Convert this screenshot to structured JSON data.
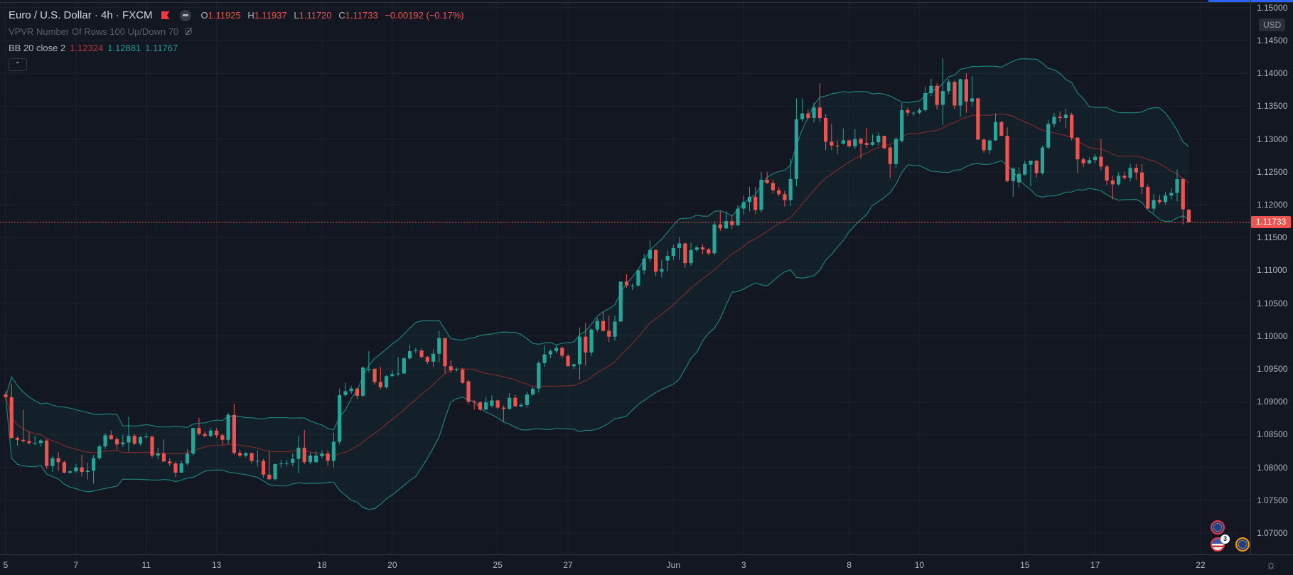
{
  "header": {
    "symbol": "Euro / U.S. Dollar · 4h · FXCM",
    "ohlc": [
      {
        "key": "O",
        "value": "1.11925"
      },
      {
        "key": "H",
        "value": "1.11937"
      },
      {
        "key": "L",
        "value": "1.11720"
      },
      {
        "key": "C",
        "value": "1.11733"
      }
    ],
    "change": "−0.00192 (−0.17%)",
    "vpvr": "VPVR Number Of Rows 100 Up/Down 70",
    "bb_label": "BB 20 close 2",
    "bb_basis": "1.12324",
    "bb_upper": "1.12881",
    "bb_lower": "1.11767",
    "collapse_icon": "chevron-up-icon"
  },
  "price_axis": {
    "currency": "USD",
    "last_price": "1.11733",
    "ticks": [
      "1.15000",
      "1.14500",
      "1.14000",
      "1.13500",
      "1.13000",
      "1.12500",
      "1.12000",
      "1.11500",
      "1.11000",
      "1.10500",
      "1.10000",
      "1.09500",
      "1.09000",
      "1.08500",
      "1.08000",
      "1.07500",
      "1.07000"
    ]
  },
  "time_axis": {
    "ticks": [
      {
        "label": "5",
        "index": 0
      },
      {
        "label": "7",
        "index": 12
      },
      {
        "label": "11",
        "index": 24
      },
      {
        "label": "13",
        "index": 36
      },
      {
        "label": "18",
        "index": 54
      },
      {
        "label": "20",
        "index": 66
      },
      {
        "label": "25",
        "index": 84
      },
      {
        "label": "27",
        "index": 96
      },
      {
        "label": "Jun",
        "index": 114
      },
      {
        "label": "3",
        "index": 126
      },
      {
        "label": "8",
        "index": 144
      },
      {
        "label": "10",
        "index": 156
      },
      {
        "label": "15",
        "index": 174
      },
      {
        "label": "17",
        "index": 186
      },
      {
        "label": "22",
        "index": 204
      }
    ]
  },
  "events": [
    {
      "icon": "eu-flag-icon",
      "kind": "eu"
    },
    {
      "icon": "us-flag-icon",
      "kind": "us",
      "count": "3"
    },
    {
      "icon": "eu-flag-icon",
      "kind": "eu-orange"
    }
  ],
  "colors": {
    "background": "#131722",
    "up": "#26a69a",
    "down": "#ef5350",
    "bb_band": "#1f7f79",
    "bb_basis": "#7b2b2d",
    "grid": "#1e222d",
    "last_price": "#ef5350"
  },
  "chart_data": {
    "type": "candlestick",
    "interval": "4h",
    "ylim": [
      1.0665,
      1.1505
    ],
    "grid": true,
    "indicator": {
      "name": "BB",
      "length": 20,
      "source": "close",
      "mult": 2
    },
    "ohlc": [
      [
        1.0911,
        1.0916,
        1.0902,
        1.0907
      ],
      [
        1.0907,
        1.0927,
        1.0843,
        1.0845
      ],
      [
        1.0845,
        1.0847,
        1.0833,
        1.0842
      ],
      [
        1.0842,
        1.0888,
        1.0838,
        1.084
      ],
      [
        1.084,
        1.0855,
        1.0835,
        1.0837
      ],
      [
        1.0836,
        1.0848,
        1.0834,
        1.0837
      ],
      [
        1.0837,
        1.0843,
        1.0832,
        1.0841
      ],
      [
        1.0841,
        1.0843,
        1.0798,
        1.0802
      ],
      [
        1.0802,
        1.0818,
        1.0793,
        1.0814
      ],
      [
        1.0814,
        1.0823,
        1.0795,
        1.0808
      ],
      [
        1.0808,
        1.081,
        1.0791,
        1.0792
      ],
      [
        1.0792,
        1.0796,
        1.079,
        1.0794
      ],
      [
        1.0794,
        1.0805,
        1.0792,
        1.08
      ],
      [
        1.08,
        1.0819,
        1.0786,
        1.0793
      ],
      [
        1.0793,
        1.0807,
        1.0781,
        1.0795
      ],
      [
        1.0795,
        1.0819,
        1.0775,
        1.0814
      ],
      [
        1.0814,
        1.0835,
        1.0811,
        1.0832
      ],
      [
        1.0832,
        1.0852,
        1.0828,
        1.0849
      ],
      [
        1.0849,
        1.0856,
        1.0842,
        1.0843
      ],
      [
        1.0843,
        1.0846,
        1.0827,
        1.0835
      ],
      [
        1.0835,
        1.085,
        1.0831,
        1.0838
      ],
      [
        1.0838,
        1.0877,
        1.0824,
        1.0848
      ],
      [
        1.0848,
        1.0851,
        1.0834,
        1.0836
      ],
      [
        1.0836,
        1.0848,
        1.0833,
        1.0846
      ],
      [
        1.0846,
        1.0852,
        1.0844,
        1.0847
      ],
      [
        1.0847,
        1.0848,
        1.0815,
        1.0818
      ],
      [
        1.0818,
        1.083,
        1.0812,
        1.0821
      ],
      [
        1.0821,
        1.0843,
        1.0808,
        1.0809
      ],
      [
        1.0809,
        1.0814,
        1.0802,
        1.0806
      ],
      [
        1.0806,
        1.0809,
        1.0785,
        1.0792
      ],
      [
        1.0792,
        1.081,
        1.0792,
        1.0806
      ],
      [
        1.0806,
        1.0828,
        1.0803,
        1.0821
      ],
      [
        1.0821,
        1.086,
        1.0818,
        1.086
      ],
      [
        1.086,
        1.0876,
        1.0849,
        1.0851
      ],
      [
        1.0851,
        1.0855,
        1.0846,
        1.0848
      ],
      [
        1.0848,
        1.086,
        1.0846,
        1.0856
      ],
      [
        1.0856,
        1.086,
        1.0845,
        1.0849
      ],
      [
        1.0849,
        1.0852,
        1.0834,
        1.0842
      ],
      [
        1.0842,
        1.0883,
        1.0836,
        1.088
      ],
      [
        1.088,
        1.0897,
        1.0819,
        1.0822
      ],
      [
        1.0822,
        1.0827,
        1.0815,
        1.0818
      ],
      [
        1.0818,
        1.0823,
        1.0815,
        1.0822
      ],
      [
        1.0822,
        1.0822,
        1.0806,
        1.081
      ],
      [
        1.081,
        1.0826,
        1.0801,
        1.081
      ],
      [
        1.081,
        1.0813,
        1.0784,
        1.0789
      ],
      [
        1.0789,
        1.0825,
        1.0781,
        1.0782
      ],
      [
        1.0782,
        1.0806,
        1.078,
        1.0805
      ],
      [
        1.0805,
        1.0811,
        1.08,
        1.0806
      ],
      [
        1.0806,
        1.0811,
        1.0802,
        1.0807
      ],
      [
        1.0807,
        1.0821,
        1.0802,
        1.0813
      ],
      [
        1.0813,
        1.0848,
        1.0791,
        1.083
      ],
      [
        1.083,
        1.0857,
        1.0805,
        1.0808
      ],
      [
        1.0808,
        1.0822,
        1.0805,
        1.0818
      ],
      [
        1.0808,
        1.0825,
        1.0807,
        1.0818
      ],
      [
        1.0817,
        1.0826,
        1.0814,
        1.0821
      ],
      [
        1.0821,
        1.0826,
        1.0802,
        1.081
      ],
      [
        1.081,
        1.0853,
        1.08,
        1.0839
      ],
      [
        1.0839,
        1.092,
        1.0835,
        1.091
      ],
      [
        1.091,
        1.0929,
        1.0907,
        1.0916
      ],
      [
        1.0916,
        1.0924,
        1.0912,
        1.092
      ],
      [
        1.092,
        1.0921,
        1.0904,
        1.0909
      ],
      [
        1.0909,
        1.0954,
        1.0907,
        1.0952
      ],
      [
        1.095,
        1.0977,
        1.0945,
        1.095
      ],
      [
        1.095,
        1.0951,
        1.0926,
        1.093
      ],
      [
        1.093,
        1.0953,
        1.0919,
        1.0922
      ],
      [
        1.0922,
        1.0941,
        1.092,
        1.0939
      ],
      [
        1.0939,
        1.0948,
        1.0938,
        1.0942
      ],
      [
        1.0942,
        1.0968,
        1.0939,
        1.0943
      ],
      [
        1.0943,
        1.0968,
        1.0942,
        1.0966
      ],
      [
        1.0966,
        1.0987,
        1.0964,
        1.0977
      ],
      [
        1.0977,
        1.0982,
        1.0974,
        1.0978
      ],
      [
        1.0978,
        1.0981,
        1.0966,
        1.0968
      ],
      [
        1.0968,
        1.097,
        1.0957,
        1.0961
      ],
      [
        1.0961,
        1.098,
        1.0953,
        1.0973
      ],
      [
        1.0973,
        1.1008,
        1.096,
        1.0997
      ],
      [
        1.0997,
        1.0997,
        1.0943,
        1.0954
      ],
      [
        1.0954,
        1.0963,
        1.0944,
        1.0948
      ],
      [
        1.0949,
        1.0952,
        1.0946,
        1.0949
      ],
      [
        1.0949,
        1.0951,
        1.0927,
        1.0929
      ],
      [
        1.0931,
        1.0933,
        1.0896,
        1.09
      ],
      [
        1.09,
        1.0903,
        1.0888,
        1.0899
      ],
      [
        1.0899,
        1.0901,
        1.0886,
        1.0888
      ],
      [
        1.0888,
        1.0907,
        1.0887,
        1.0899
      ],
      [
        1.0894,
        1.091,
        1.0891,
        1.0902
      ],
      [
        1.0902,
        1.0903,
        1.0889,
        1.0891
      ],
      [
        1.0891,
        1.0894,
        1.087,
        1.0889
      ],
      [
        1.0889,
        1.0913,
        1.0888,
        1.0906
      ],
      [
        1.0906,
        1.0911,
        1.0892,
        1.0893
      ],
      [
        1.0893,
        1.0898,
        1.0892,
        1.0895
      ],
      [
        1.0895,
        1.0915,
        1.0891,
        1.0911
      ],
      [
        1.0911,
        1.0922,
        1.0909,
        1.092
      ],
      [
        1.092,
        1.0962,
        1.0914,
        1.0959
      ],
      [
        1.0959,
        1.0986,
        1.0953,
        1.0972
      ],
      [
        1.0972,
        1.098,
        1.0966,
        1.0977
      ],
      [
        1.0977,
        1.0986,
        1.0974,
        1.0982
      ],
      [
        1.0982,
        1.0984,
        1.0966,
        1.097
      ],
      [
        1.097,
        1.0972,
        1.0954,
        1.0954
      ],
      [
        1.0954,
        1.0958,
        1.095,
        1.0957
      ],
      [
        1.0957,
        1.1013,
        1.0934,
        1.0999
      ],
      [
        1.0999,
        1.102,
        1.0955,
        1.0975
      ],
      [
        1.0975,
        1.1012,
        1.097,
        1.101
      ],
      [
        1.101,
        1.1028,
        1.1006,
        1.1023
      ],
      [
        1.1023,
        1.1037,
        1.1007,
        1.1008
      ],
      [
        1.1008,
        1.1031,
        1.0991,
        1.0999
      ],
      [
        1.0999,
        1.1031,
        1.0993,
        1.1022
      ],
      [
        1.1022,
        1.1083,
        1.1022,
        1.1083
      ],
      [
        1.1083,
        1.1094,
        1.1073,
        1.1077
      ],
      [
        1.1077,
        1.108,
        1.107,
        1.1077
      ],
      [
        1.1077,
        1.1102,
        1.1075,
        1.11
      ],
      [
        1.11,
        1.1125,
        1.1094,
        1.1118
      ],
      [
        1.1118,
        1.1146,
        1.1113,
        1.1131
      ],
      [
        1.1131,
        1.1132,
        1.1091,
        1.1098
      ],
      [
        1.1098,
        1.1116,
        1.1089,
        1.1102
      ],
      [
        1.1115,
        1.113,
        1.1099,
        1.1122
      ],
      [
        1.1122,
        1.1139,
        1.1116,
        1.1134
      ],
      [
        1.1134,
        1.115,
        1.1116,
        1.1141
      ],
      [
        1.1141,
        1.1142,
        1.1104,
        1.1111
      ],
      [
        1.1111,
        1.1142,
        1.1107,
        1.1131
      ],
      [
        1.1131,
        1.1138,
        1.1128,
        1.1135
      ],
      [
        1.1135,
        1.114,
        1.1125,
        1.1132
      ],
      [
        1.1132,
        1.1134,
        1.1123,
        1.1126
      ],
      [
        1.1126,
        1.1175,
        1.1123,
        1.117
      ],
      [
        1.117,
        1.119,
        1.116,
        1.1164
      ],
      [
        1.1164,
        1.119,
        1.1163,
        1.1175
      ],
      [
        1.1175,
        1.1184,
        1.1163,
        1.1169
      ],
      [
        1.1169,
        1.1199,
        1.1167,
        1.1194
      ],
      [
        1.1194,
        1.1214,
        1.1185,
        1.1204
      ],
      [
        1.1204,
        1.1227,
        1.119,
        1.1212
      ],
      [
        1.1212,
        1.1227,
        1.1186,
        1.1192
      ],
      [
        1.1192,
        1.125,
        1.1188,
        1.1238
      ],
      [
        1.1238,
        1.125,
        1.1232,
        1.1233
      ],
      [
        1.1233,
        1.1238,
        1.1217,
        1.1222
      ],
      [
        1.1222,
        1.1227,
        1.1213,
        1.1216
      ],
      [
        1.1216,
        1.1221,
        1.1197,
        1.1207
      ],
      [
        1.1207,
        1.127,
        1.1198,
        1.1239
      ],
      [
        1.1239,
        1.1362,
        1.1228,
        1.133
      ],
      [
        1.133,
        1.1362,
        1.1326,
        1.1339
      ],
      [
        1.1339,
        1.1345,
        1.133,
        1.1332
      ],
      [
        1.1332,
        1.1355,
        1.1325,
        1.1348
      ],
      [
        1.1348,
        1.1385,
        1.1326,
        1.1332
      ],
      [
        1.1332,
        1.1338,
        1.1283,
        1.1296
      ],
      [
        1.1296,
        1.1323,
        1.1283,
        1.129
      ],
      [
        1.129,
        1.1298,
        1.1277,
        1.1289
      ],
      [
        1.1293,
        1.1316,
        1.1292,
        1.1298
      ],
      [
        1.1298,
        1.1299,
        1.1287,
        1.1289
      ],
      [
        1.1289,
        1.1315,
        1.1285,
        1.13
      ],
      [
        1.13,
        1.1302,
        1.127,
        1.1293
      ],
      [
        1.1294,
        1.1317,
        1.1286,
        1.1291
      ],
      [
        1.1291,
        1.1307,
        1.129,
        1.1295
      ],
      [
        1.1295,
        1.131,
        1.129,
        1.1305
      ],
      [
        1.1305,
        1.1305,
        1.1284,
        1.1286
      ],
      [
        1.1287,
        1.129,
        1.1241,
        1.1262
      ],
      [
        1.1262,
        1.1303,
        1.1256,
        1.13
      ],
      [
        1.1297,
        1.1355,
        1.1295,
        1.1344
      ],
      [
        1.1344,
        1.1348,
        1.1335,
        1.134
      ],
      [
        1.134,
        1.1342,
        1.1335,
        1.134
      ],
      [
        1.134,
        1.1347,
        1.1338,
        1.1344
      ],
      [
        1.1344,
        1.138,
        1.1342,
        1.137
      ],
      [
        1.137,
        1.1392,
        1.1365,
        1.1381
      ],
      [
        1.1381,
        1.1385,
        1.1345,
        1.1352
      ],
      [
        1.1352,
        1.1423,
        1.1322,
        1.1373
      ],
      [
        1.1373,
        1.1391,
        1.1368,
        1.1387
      ],
      [
        1.1387,
        1.1389,
        1.1345,
        1.1351
      ],
      [
        1.1351,
        1.1392,
        1.1334,
        1.1391
      ],
      [
        1.1391,
        1.14,
        1.134,
        1.1357
      ],
      [
        1.1357,
        1.1396,
        1.135,
        1.1362
      ],
      [
        1.1362,
        1.1362,
        1.1299,
        1.1299
      ],
      [
        1.1299,
        1.1301,
        1.1279,
        1.1283
      ],
      [
        1.1283,
        1.1298,
        1.1277,
        1.1298
      ],
      [
        1.1298,
        1.1339,
        1.1297,
        1.1326
      ],
      [
        1.1326,
        1.1328,
        1.1304,
        1.1305
      ],
      [
        1.1305,
        1.1318,
        1.1234,
        1.1236
      ],
      [
        1.1236,
        1.1257,
        1.1212,
        1.1255
      ],
      [
        1.1234,
        1.1257,
        1.1226,
        1.1247
      ],
      [
        1.1246,
        1.1267,
        1.1244,
        1.1262
      ],
      [
        1.1261,
        1.1267,
        1.1228,
        1.1267
      ],
      [
        1.1267,
        1.1268,
        1.1241,
        1.1248
      ],
      [
        1.1248,
        1.129,
        1.1246,
        1.1287
      ],
      [
        1.1287,
        1.1329,
        1.1284,
        1.1323
      ],
      [
        1.1323,
        1.134,
        1.1318,
        1.1334
      ],
      [
        1.1334,
        1.1342,
        1.1326,
        1.1332
      ],
      [
        1.1332,
        1.1346,
        1.1316,
        1.1337
      ],
      [
        1.1337,
        1.134,
        1.1298,
        1.1302
      ],
      [
        1.1302,
        1.1303,
        1.1248,
        1.1269
      ],
      [
        1.1269,
        1.1272,
        1.1257,
        1.1263
      ],
      [
        1.1263,
        1.1272,
        1.1262,
        1.1268
      ],
      [
        1.1268,
        1.1277,
        1.1263,
        1.1273
      ],
      [
        1.1273,
        1.13,
        1.1253,
        1.1258
      ],
      [
        1.1258,
        1.1261,
        1.123,
        1.1237
      ],
      [
        1.1237,
        1.1244,
        1.1208,
        1.1231
      ],
      [
        1.1231,
        1.1249,
        1.1229,
        1.1244
      ],
      [
        1.1244,
        1.1249,
        1.1238,
        1.1241
      ],
      [
        1.1241,
        1.1262,
        1.1236,
        1.1256
      ],
      [
        1.1256,
        1.1262,
        1.1238,
        1.1249
      ],
      [
        1.1249,
        1.1262,
        1.1216,
        1.1227
      ],
      [
        1.1227,
        1.1231,
        1.1194,
        1.1194
      ],
      [
        1.1194,
        1.1216,
        1.1188,
        1.1207
      ],
      [
        1.1207,
        1.1215,
        1.1201,
        1.1204
      ],
      [
        1.1204,
        1.1219,
        1.12,
        1.1214
      ],
      [
        1.1214,
        1.1225,
        1.1208,
        1.1218
      ],
      [
        1.1218,
        1.1254,
        1.1205,
        1.1239
      ],
      [
        1.1239,
        1.1241,
        1.117,
        1.1193
      ],
      [
        1.11925,
        1.11937,
        1.1172,
        1.11733
      ]
    ]
  }
}
